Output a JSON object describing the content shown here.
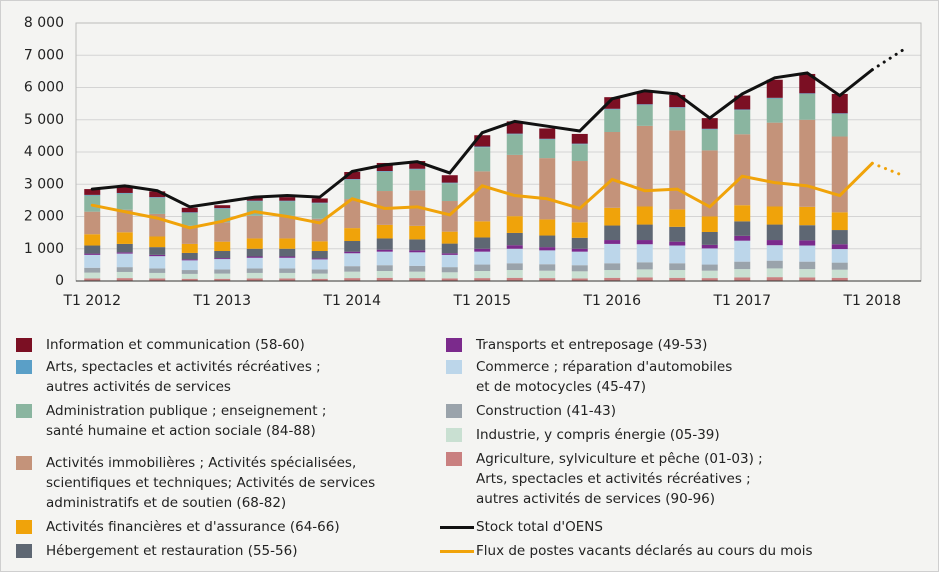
{
  "chart_data": {
    "type": "stacked_bar_line",
    "categories": [
      "T1 2012",
      null,
      null,
      null,
      "T1 2013",
      null,
      null,
      null,
      "T1 2014",
      null,
      null,
      null,
      "T1 2015",
      null,
      null,
      null,
      "T1 2016",
      null,
      null,
      null,
      "T1 2017",
      null,
      null,
      null,
      "T1 2018",
      null
    ],
    "ylim": [
      0,
      8000
    ],
    "yticks": [
      0,
      {
        "value": 1000,
        "label": "1 000"
      },
      {
        "value": 2000,
        "label": "2 000"
      },
      {
        "value": 3000,
        "label": "3 000"
      },
      {
        "value": 4000,
        "label": "4 000"
      },
      {
        "value": 5000,
        "label": "5 000"
      },
      {
        "value": 6000,
        "label": "6 000"
      },
      {
        "value": 7000,
        "label": "7 000"
      },
      {
        "value": 8000,
        "label": "8 000"
      }
    ],
    "grid": true,
    "series": [
      {
        "name": "Agriculture, sylviculture et pêche (01-03) ;\nArts, spectacles et activités récréatives ;\nautres activités de services (90-96)",
        "kind": "bar",
        "color": "#c98080",
        "values": [
          80,
          90,
          80,
          70,
          70,
          80,
          80,
          70,
          90,
          100,
          90,
          80,
          90,
          100,
          90,
          80,
          100,
          110,
          100,
          90,
          110,
          120,
          110,
          100,
          null,
          null
        ]
      },
      {
        "name": "Industrie, y compris énergie (05-39)",
        "kind": "bar",
        "color": "#c9e0d2",
        "values": [
          180,
          190,
          170,
          150,
          160,
          170,
          170,
          160,
          200,
          210,
          200,
          190,
          220,
          240,
          230,
          220,
          240,
          250,
          240,
          230,
          260,
          270,
          260,
          250,
          null,
          null
        ]
      },
      {
        "name": "Construction (41-43)",
        "kind": "bar",
        "color": "#9aa3ab",
        "values": [
          150,
          150,
          140,
          120,
          130,
          140,
          140,
          130,
          170,
          180,
          180,
          160,
          200,
          210,
          200,
          190,
          210,
          220,
          210,
          190,
          230,
          240,
          230,
          220,
          null,
          null
        ]
      },
      {
        "name": "Commerce ; réparation d'automobiles\net de motocycles (45-47)",
        "kind": "bar",
        "color": "#bcd6ea",
        "values": [
          400,
          420,
          380,
          300,
          320,
          330,
          330,
          310,
          400,
          420,
          420,
          380,
          400,
          450,
          430,
          420,
          600,
          560,
          550,
          500,
          650,
          480,
          500,
          420,
          null,
          null
        ]
      },
      {
        "name": "Transports et entreposage (49-53)",
        "kind": "bar",
        "color": "#7b2a8c",
        "values": [
          40,
          40,
          40,
          30,
          30,
          40,
          40,
          30,
          50,
          60,
          60,
          50,
          90,
          110,
          100,
          90,
          120,
          130,
          120,
          110,
          150,
          160,
          160,
          150,
          null,
          null
        ]
      },
      {
        "name": "Hébergement et restauration (55-56)",
        "kind": "bar",
        "color": "#5e6773",
        "values": [
          250,
          260,
          240,
          200,
          220,
          240,
          240,
          230,
          330,
          350,
          340,
          300,
          350,
          380,
          360,
          340,
          450,
          480,
          460,
          400,
          450,
          480,
          470,
          440,
          null,
          null
        ]
      },
      {
        "name": "Activités financières et d'assurance (64-66)",
        "kind": "bar",
        "color": "#f0a30a",
        "values": [
          350,
          360,
          330,
          280,
          290,
          320,
          320,
          300,
          400,
          420,
          420,
          370,
          500,
          520,
          500,
          480,
          550,
          560,
          540,
          480,
          500,
          560,
          570,
          550,
          null,
          null
        ]
      },
      {
        "name": "Activités immobilières ; Activités spécialisées,\nscientifiques et techniques; Activités de services\nadministratifs et de soutien (68-82)",
        "kind": "bar",
        "color": "#c4937a",
        "values": [
          700,
          700,
          700,
          560,
          600,
          700,
          700,
          700,
          900,
          1050,
          1100,
          950,
          1550,
          1900,
          1900,
          1900,
          2350,
          2500,
          2450,
          2050,
          2200,
          2600,
          2700,
          2350,
          null,
          null
        ]
      },
      {
        "name": "Administration publique ; enseignement ;\nsanté humaine et action sociale (84-88)",
        "kind": "bar",
        "color": "#8ab5a0",
        "values": [
          500,
          500,
          500,
          400,
          420,
          450,
          450,
          480,
          600,
          600,
          650,
          550,
          750,
          640,
          580,
          520,
          700,
          650,
          700,
          650,
          750,
          750,
          800,
          700,
          null,
          null
        ]
      },
      {
        "name": "Arts, spectacles et activités récréatives ;\nautres activités de services",
        "kind": "bar",
        "color": "#5a9fc7",
        "values": [
          20,
          20,
          20,
          20,
          20,
          20,
          20,
          20,
          20,
          20,
          20,
          20,
          20,
          20,
          20,
          20,
          20,
          20,
          20,
          20,
          20,
          20,
          20,
          20,
          null,
          null
        ]
      },
      {
        "name": "Information et communication (58-60)",
        "kind": "bar",
        "color": "#7b0f23",
        "values": [
          180,
          170,
          180,
          140,
          90,
          110,
          110,
          130,
          220,
          250,
          240,
          230,
          350,
          380,
          320,
          300,
          360,
          390,
          380,
          330,
          430,
          560,
          600,
          600,
          null,
          null
        ]
      },
      {
        "name": "Stock total d'OENS",
        "kind": "line",
        "color": "#111111",
        "dotted_segments": 1,
        "values": [
          2850,
          2950,
          2800,
          2300,
          2450,
          2600,
          2650,
          2600,
          3400,
          3600,
          3700,
          3350,
          4600,
          4950,
          4800,
          4650,
          5650,
          5900,
          5800,
          5050,
          5800,
          6300,
          6450,
          5750,
          6550,
          7200
        ]
      },
      {
        "name": "Flux de postes vacants déclarés au cours du mois",
        "kind": "line",
        "color": "#f0a30a",
        "dotted_segments": 1,
        "values": [
          2350,
          2150,
          1950,
          1650,
          1850,
          2150,
          2000,
          1800,
          2550,
          2250,
          2300,
          2050,
          2950,
          2650,
          2550,
          2250,
          3150,
          2800,
          2850,
          2300,
          3250,
          3050,
          2950,
          2650,
          3650,
          3250
        ]
      }
    ]
  }
}
